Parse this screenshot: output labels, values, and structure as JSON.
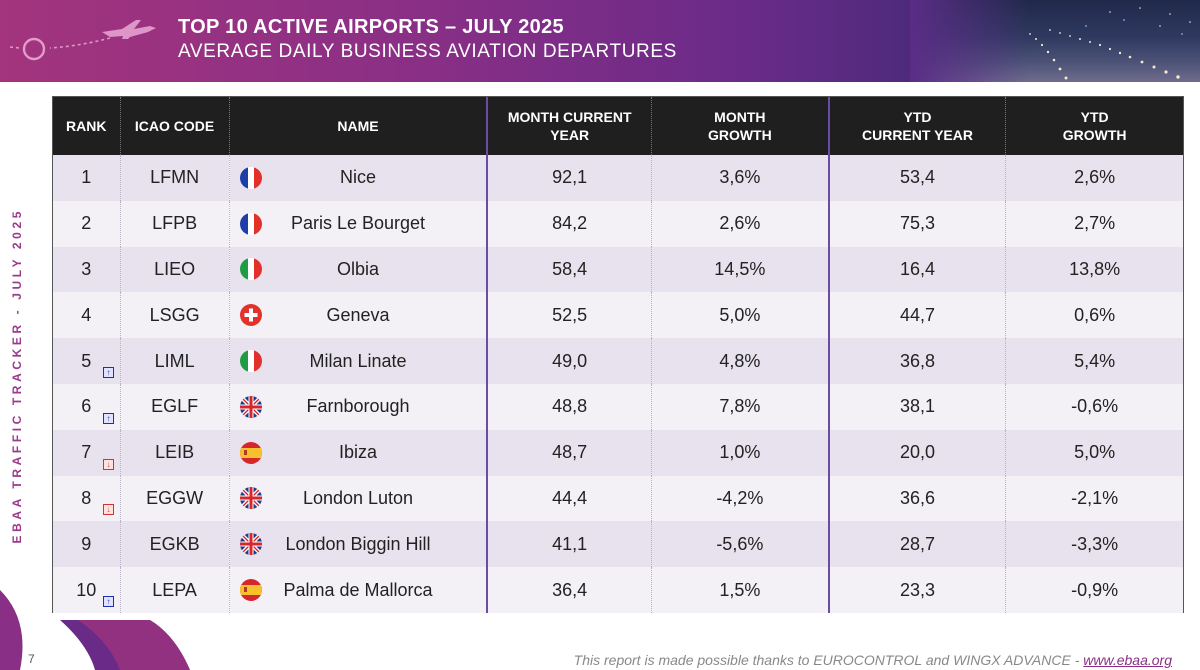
{
  "header": {
    "title": "TOP 10 ACTIVE AIRPORTS – JULY 2025",
    "subtitle": "AVERAGE DAILY BUSINESS AVIATION DEPARTURES"
  },
  "side_label": "EBAA TRAFFIC TRACKER - JULY 2025",
  "table": {
    "columns": {
      "rank": "RANK",
      "icao": "ICAO CODE",
      "name": "NAME",
      "month_current_l1": "MONTH CURRENT",
      "month_current_l2": "YEAR",
      "month_growth_l1": "MONTH",
      "month_growth_l2": "GROWTH",
      "ytd_current_l1": "YTD",
      "ytd_current_l2": "CURRENT YEAR",
      "ytd_growth_l1": "YTD",
      "ytd_growth_l2": "GROWTH"
    },
    "rows": [
      {
        "rank": "1",
        "trend": "none",
        "icao": "LFMN",
        "flag": "france",
        "name": "Nice",
        "month_current": "92,1",
        "month_growth": "3,6%",
        "ytd_current": "53,4",
        "ytd_growth": "2,6%"
      },
      {
        "rank": "2",
        "trend": "none",
        "icao": "LFPB",
        "flag": "france",
        "name": "Paris Le Bourget",
        "month_current": "84,2",
        "month_growth": "2,6%",
        "ytd_current": "75,3",
        "ytd_growth": "2,7%"
      },
      {
        "rank": "3",
        "trend": "none",
        "icao": "LIEO",
        "flag": "italy",
        "name": "Olbia",
        "month_current": "58,4",
        "month_growth": "14,5%",
        "ytd_current": "16,4",
        "ytd_growth": "13,8%"
      },
      {
        "rank": "4",
        "trend": "none",
        "icao": "LSGG",
        "flag": "switzerland",
        "name": "Geneva",
        "month_current": "52,5",
        "month_growth": "5,0%",
        "ytd_current": "44,7",
        "ytd_growth": "0,6%"
      },
      {
        "rank": "5",
        "trend": "up",
        "icao": "LIML",
        "flag": "italy",
        "name": "Milan Linate",
        "month_current": "49,0",
        "month_growth": "4,8%",
        "ytd_current": "36,8",
        "ytd_growth": "5,4%"
      },
      {
        "rank": "6",
        "trend": "up",
        "icao": "EGLF",
        "flag": "uk",
        "name": "Farnborough",
        "month_current": "48,8",
        "month_growth": "7,8%",
        "ytd_current": "38,1",
        "ytd_growth": "-0,6%"
      },
      {
        "rank": "7",
        "trend": "down",
        "icao": "LEIB",
        "flag": "spain",
        "name": "Ibiza",
        "month_current": "48,7",
        "month_growth": "1,0%",
        "ytd_current": "20,0",
        "ytd_growth": "5,0%"
      },
      {
        "rank": "8",
        "trend": "down",
        "icao": "EGGW",
        "flag": "uk",
        "name": "London Luton",
        "month_current": "44,4",
        "month_growth": "-4,2%",
        "ytd_current": "36,6",
        "ytd_growth": "-2,1%"
      },
      {
        "rank": "9",
        "trend": "none",
        "icao": "EGKB",
        "flag": "uk",
        "name": "London Biggin Hill",
        "month_current": "41,1",
        "month_growth": "-5,6%",
        "ytd_current": "28,7",
        "ytd_growth": "-3,3%"
      },
      {
        "rank": "10",
        "trend": "up",
        "icao": "LEPA",
        "flag": "spain",
        "name": "Palma de Mallorca",
        "month_current": "36,4",
        "month_growth": "1,5%",
        "ytd_current": "23,3",
        "ytd_growth": "-0,9%"
      }
    ]
  },
  "footer": {
    "page_number": "7",
    "note": "This report is made possible thanks to EUROCONTROL and WINGX ADVANCE - ",
    "link": "www.ebaa.org"
  },
  "colors": {
    "brand_purple": "#8a2f86",
    "header_row": "#1f1f1f",
    "row_odd": "#e7e2ee",
    "row_even": "#f3f1f6",
    "up_arrow": "#1f2db8",
    "down_arrow": "#d0342c"
  }
}
